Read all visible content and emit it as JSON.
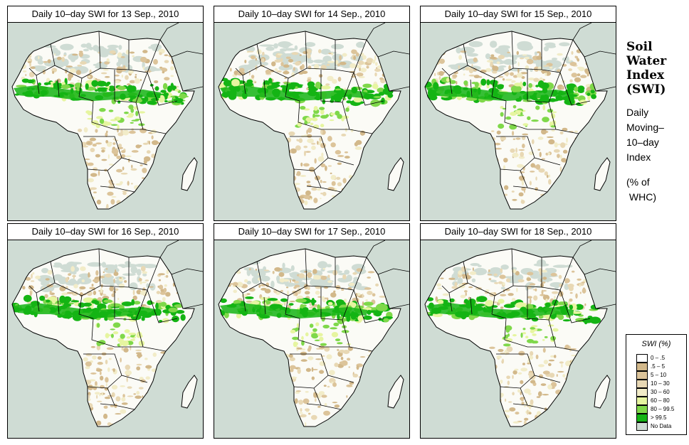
{
  "panels": [
    {
      "title": "Daily 10–day SWI for  13 Sep., 2010",
      "wet": 1.0
    },
    {
      "title": "Daily 10–day SWI for  14 Sep., 2010",
      "wet": 1.05
    },
    {
      "title": "Daily 10–day SWI for  15 Sep., 2010",
      "wet": 0.95
    },
    {
      "title": "Daily 10–day SWI for  16 Sep., 2010",
      "wet": 1.1
    },
    {
      "title": "Daily 10–day SWI for  17 Sep., 2010",
      "wet": 1.05
    },
    {
      "title": "Daily 10–day SWI for  18 Sep., 2010",
      "wet": 0.98
    }
  ],
  "side": {
    "heading": [
      "Soil",
      "Water",
      "Index",
      "(SWI)"
    ],
    "desc": [
      "Daily",
      "Moving–",
      "10–day",
      "Index"
    ],
    "unit": [
      "(% of",
      " WHC)"
    ]
  },
  "legend": {
    "title": "SWI (%)",
    "items": [
      {
        "label": "0 – .5",
        "color": "#ffffff"
      },
      {
        "label": ".5 – 5",
        "color": "#d2b88a"
      },
      {
        "label": "5 – 10",
        "color": "#dcc49a"
      },
      {
        "label": "10 – 30",
        "color": "#e8d8b4"
      },
      {
        "label": "30 – 60",
        "color": "#f2ecc8"
      },
      {
        "label": "60 – 80",
        "color": "#e6f5a0"
      },
      {
        "label": "80 – 99.5",
        "color": "#7fd84a"
      },
      {
        "label": "> 99.5",
        "color": "#14b414"
      },
      {
        "label": "No Data",
        "color": "#cfdcd4"
      }
    ]
  }
}
